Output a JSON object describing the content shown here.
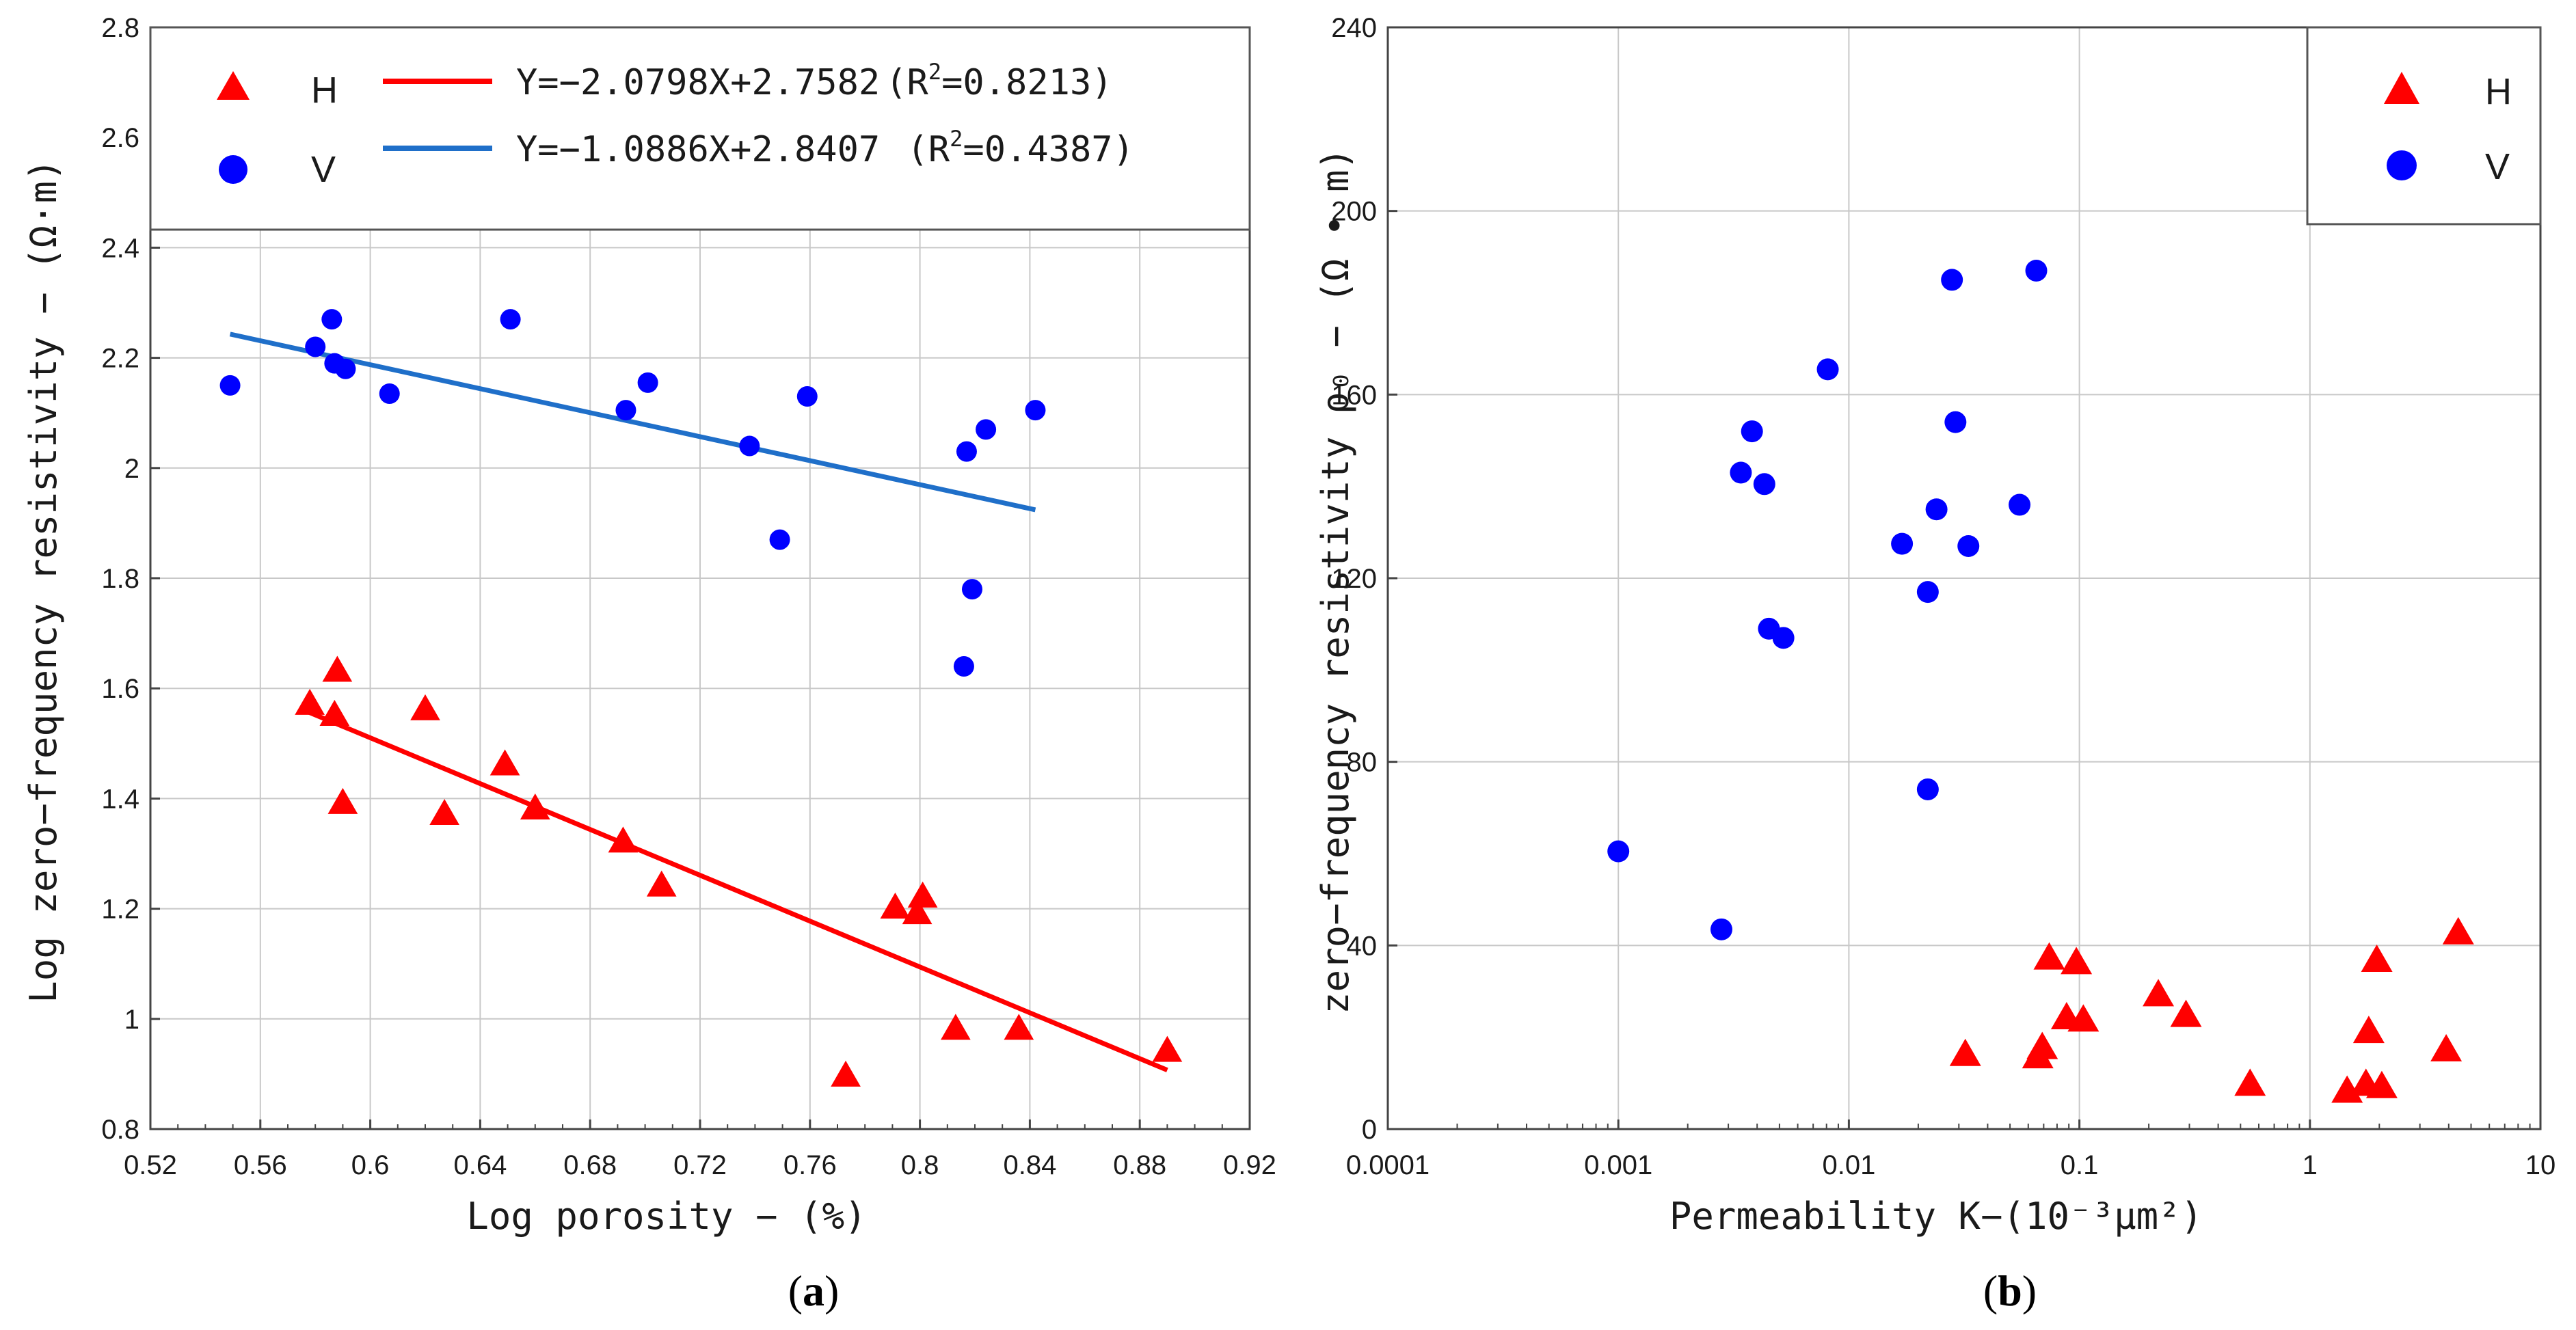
{
  "colors": {
    "H": "#ff0000",
    "V": "#0000ff",
    "fit_H": "#ff0000",
    "fit_V": "#1f6fc9",
    "grid": "#c8c8c8"
  },
  "chart_data": [
    {
      "panel": "(a)",
      "type": "scatter",
      "xlabel": "Log porosity − (%)",
      "ylabel": "Log zero−frequency resistivity − (Ω·m)",
      "xlim": [
        0.52,
        0.92
      ],
      "ylim": [
        0.8,
        2.8
      ],
      "xticks": [
        "0.52",
        "0.56",
        "0.6",
        "0.64",
        "0.68",
        "0.72",
        "0.76",
        "0.8",
        "0.84",
        "0.88",
        "0.92"
      ],
      "yticks": [
        "0.8",
        "1",
        "1.2",
        "1.4",
        "1.6",
        "1.8",
        "2",
        "2.2",
        "2.4",
        "2.6",
        "2.8"
      ],
      "grid": true,
      "legend": {
        "placement": "top",
        "entries": [
          "H",
          "V"
        ]
      },
      "series": [
        {
          "name": "H",
          "marker": "triangle",
          "color": "#ff0000",
          "points": [
            [
              0.578,
              1.57
            ],
            [
              0.587,
              1.55
            ],
            [
              0.588,
              1.63
            ],
            [
              0.59,
              1.39
            ],
            [
              0.62,
              1.56
            ],
            [
              0.627,
              1.37
            ],
            [
              0.649,
              1.46
            ],
            [
              0.66,
              1.38
            ],
            [
              0.692,
              1.32
            ],
            [
              0.706,
              1.24
            ],
            [
              0.773,
              0.895
            ],
            [
              0.791,
              1.2
            ],
            [
              0.799,
              1.19
            ],
            [
              0.801,
              1.22
            ],
            [
              0.813,
              0.98
            ],
            [
              0.836,
              0.98
            ],
            [
              0.89,
              0.94
            ]
          ]
        },
        {
          "name": "V",
          "marker": "circle",
          "color": "#0000ff",
          "points": [
            [
              0.549,
              2.15
            ],
            [
              0.58,
              2.22
            ],
            [
              0.586,
              2.27
            ],
            [
              0.587,
              2.19
            ],
            [
              0.591,
              2.18
            ],
            [
              0.607,
              2.135
            ],
            [
              0.651,
              2.27
            ],
            [
              0.693,
              2.105
            ],
            [
              0.701,
              2.155
            ],
            [
              0.738,
              2.04
            ],
            [
              0.749,
              1.87
            ],
            [
              0.759,
              2.13
            ],
            [
              0.816,
              1.64
            ],
            [
              0.817,
              2.03
            ],
            [
              0.819,
              1.78
            ],
            [
              0.824,
              2.07
            ],
            [
              0.842,
              2.105
            ]
          ]
        }
      ],
      "fits": [
        {
          "series": "H",
          "label": "Y=−2.0798X+2.7582 (R²=0.8213)",
          "eq": "Y=−2.0798X+2.7582",
          "r2_prefix": "(R",
          "r2_sup": "2",
          "r2_suffix": "=0.8213)",
          "x": [
            0.575,
            0.89
          ],
          "y": [
            1.5623,
            0.9071
          ]
        },
        {
          "series": "V",
          "label": "Y=−1.0886X+2.8407 (R²=0.4387)",
          "eq": "Y=−1.0886X+2.8407 ",
          "r2_prefix": "(R",
          "r2_sup": "2",
          "r2_suffix": "=0.4387)",
          "x": [
            0.549,
            0.842
          ],
          "y": [
            2.2431,
            1.9241
          ]
        }
      ]
    },
    {
      "panel": "(b)",
      "type": "scatter",
      "xscale": "log",
      "xlabel": "Permeability K−(10⁻³μm²)",
      "ylabel": "zero−frequency resistivity ρ₀ − (Ω • m)",
      "xlim": [
        0.0001,
        10
      ],
      "ylim": [
        0,
        240
      ],
      "xticks": [
        "0.0001",
        "0.001",
        "0.01",
        "0.1",
        "1",
        "10"
      ],
      "yticks": [
        "0",
        "40",
        "80",
        "120",
        "160",
        "200",
        "240"
      ],
      "grid": true,
      "legend": {
        "placement": "top-right",
        "entries": [
          "H",
          "V"
        ]
      },
      "series": [
        {
          "name": "H",
          "marker": "triangle",
          "color": "#ff0000",
          "points": [
            [
              0.032,
              16
            ],
            [
              0.066,
              15.5
            ],
            [
              0.069,
              17.5
            ],
            [
              0.074,
              37
            ],
            [
              0.088,
              24
            ],
            [
              0.097,
              36
            ],
            [
              0.104,
              23.5
            ],
            [
              0.22,
              29
            ],
            [
              0.29,
              24.5
            ],
            [
              0.55,
              9.5
            ],
            [
              1.45,
              8
            ],
            [
              1.75,
              9.5
            ],
            [
              1.8,
              21
            ],
            [
              1.95,
              36.5
            ],
            [
              2.05,
              9
            ],
            [
              3.9,
              17
            ],
            [
              4.4,
              42.5
            ]
          ]
        },
        {
          "name": "V",
          "marker": "circle",
          "color": "#0000ff",
          "points": [
            [
              0.001,
              60.5
            ],
            [
              0.0028,
              43.5
            ],
            [
              0.0034,
              143
            ],
            [
              0.0038,
              152
            ],
            [
              0.0043,
              140.5
            ],
            [
              0.0045,
              109
            ],
            [
              0.0052,
              107
            ],
            [
              0.0081,
              165.5
            ],
            [
              0.017,
              127.5
            ],
            [
              0.022,
              117
            ],
            [
              0.022,
              74
            ],
            [
              0.024,
              135
            ],
            [
              0.028,
              185
            ],
            [
              0.029,
              154
            ],
            [
              0.033,
              127
            ],
            [
              0.055,
              136
            ],
            [
              0.065,
              187
            ]
          ]
        }
      ]
    }
  ],
  "captions": {
    "a": "a",
    "b": "b"
  }
}
